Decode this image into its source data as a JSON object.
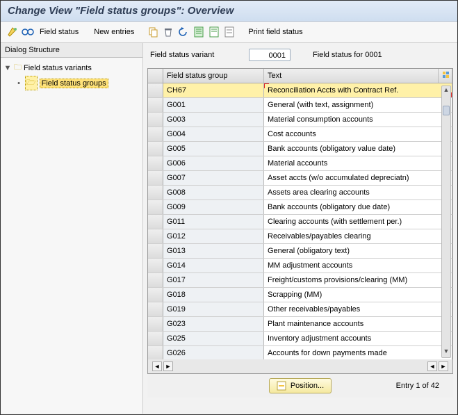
{
  "title": "Change View \"Field status groups\": Overview",
  "toolbar": {
    "field_status_label": "Field status",
    "new_entries_label": "New entries",
    "print_label": "Print field status"
  },
  "tree": {
    "title": "Dialog Structure",
    "root": "Field status variants",
    "child": "Field status groups"
  },
  "header": {
    "variant_label": "Field status variant",
    "variant_value": "0001",
    "variant_desc": "Field status for 0001"
  },
  "table": {
    "col_group": "Field status group",
    "col_text": "Text",
    "config_icon": "⦿",
    "rows": [
      {
        "grp": "CH67",
        "txt": "Reconciliation Accts with Contract Ref.",
        "hl": true
      },
      {
        "grp": "G001",
        "txt": "General (with text, assignment)"
      },
      {
        "grp": "G003",
        "txt": "Material consumption accounts"
      },
      {
        "grp": "G004",
        "txt": "Cost accounts"
      },
      {
        "grp": "G005",
        "txt": "Bank accounts (obligatory value date)"
      },
      {
        "grp": "G006",
        "txt": "Material accounts"
      },
      {
        "grp": "G007",
        "txt": "Asset accts (w/o accumulated depreciatn)"
      },
      {
        "grp": "G008",
        "txt": "Assets area clearing accounts"
      },
      {
        "grp": "G009",
        "txt": "Bank accounts (obligatory due date)"
      },
      {
        "grp": "G011",
        "txt": "Clearing accounts (with settlement per.)"
      },
      {
        "grp": "G012",
        "txt": "Receivables/payables clearing"
      },
      {
        "grp": "G013",
        "txt": "General (obligatory text)"
      },
      {
        "grp": "G014",
        "txt": "MM adjustment accounts"
      },
      {
        "grp": "G017",
        "txt": "Freight/customs provisions/clearing (MM)"
      },
      {
        "grp": "G018",
        "txt": "Scrapping (MM)"
      },
      {
        "grp": "G019",
        "txt": "Other receivables/payables"
      },
      {
        "grp": "G023",
        "txt": "Plant maintenance accounts"
      },
      {
        "grp": "G025",
        "txt": "Inventory adjustment accounts"
      },
      {
        "grp": "G026",
        "txt": "Accounts for down payments made"
      }
    ]
  },
  "footer": {
    "position_label": "Position...",
    "entry_text": "Entry 1 of 42"
  },
  "colors": {
    "highlight": "#fff1a8",
    "toolbar_bg": "#f7f7f7"
  }
}
